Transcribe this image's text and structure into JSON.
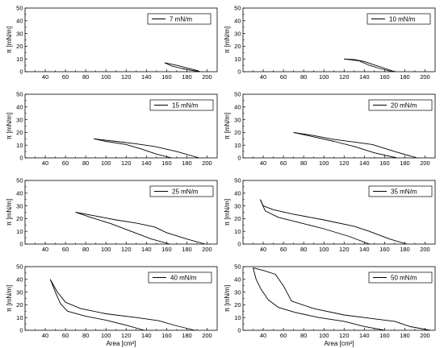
{
  "chart_data": [
    {
      "type": "line",
      "legend": "7 mN/m",
      "xlim": [
        20,
        210
      ],
      "ylim": [
        0,
        50
      ],
      "xticks": [
        40,
        60,
        80,
        100,
        120,
        140,
        160,
        180,
        200
      ],
      "yticks": [
        0,
        10,
        20,
        30,
        40,
        50
      ],
      "xlabel": "",
      "ylabel": "π [mN/m]",
      "series": [
        {
          "x": [
            158,
            170,
            180,
            190,
            193
          ],
          "y": [
            7,
            5,
            3,
            1,
            0
          ]
        },
        {
          "x": [
            193,
            185,
            175,
            165,
            158
          ],
          "y": [
            0,
            1,
            2.5,
            4.5,
            7
          ]
        }
      ]
    },
    {
      "type": "line",
      "legend": "10 mN/m",
      "xlim": [
        20,
        210
      ],
      "ylim": [
        0,
        50
      ],
      "xticks": [
        40,
        60,
        80,
        100,
        120,
        140,
        160,
        180,
        200
      ],
      "yticks": [
        0,
        10,
        20,
        30,
        40,
        50
      ],
      "xlabel": "",
      "ylabel": "π [mN/m]",
      "series": [
        {
          "x": [
            120,
            130,
            140,
            155,
            170
          ],
          "y": [
            10,
            9.5,
            8,
            4,
            0
          ]
        },
        {
          "x": [
            168,
            155,
            145,
            135,
            120
          ],
          "y": [
            0,
            2.5,
            5,
            8.5,
            10
          ]
        }
      ]
    },
    {
      "type": "line",
      "legend": "15 mN/m",
      "xlim": [
        20,
        210
      ],
      "ylim": [
        0,
        50
      ],
      "xticks": [
        40,
        60,
        80,
        100,
        120,
        140,
        160,
        180,
        200
      ],
      "yticks": [
        0,
        10,
        20,
        30,
        40,
        50
      ],
      "xlabel": "",
      "ylabel": "π [mN/m]",
      "series": [
        {
          "x": [
            88,
            110,
            130,
            148,
            170,
            192
          ],
          "y": [
            15,
            13,
            11,
            9,
            5,
            0
          ]
        },
        {
          "x": [
            165,
            150,
            135,
            120,
            100,
            88
          ],
          "y": [
            0,
            3,
            7,
            10.5,
            13,
            15
          ]
        }
      ]
    },
    {
      "type": "line",
      "legend": "20 mN/m",
      "xlim": [
        20,
        210
      ],
      "ylim": [
        0,
        50
      ],
      "xticks": [
        40,
        60,
        80,
        100,
        120,
        140,
        160,
        180,
        200
      ],
      "yticks": [
        0,
        10,
        20,
        30,
        40,
        50
      ],
      "xlabel": "",
      "ylabel": "π [mN/m]",
      "series": [
        {
          "x": [
            70,
            90,
            110,
            130,
            148,
            170,
            192
          ],
          "y": [
            20,
            17.5,
            14.5,
            12.5,
            10.5,
            5,
            0
          ]
        },
        {
          "x": [
            172,
            150,
            130,
            110,
            90,
            70
          ],
          "y": [
            0,
            4,
            9,
            13,
            16.5,
            20
          ]
        }
      ]
    },
    {
      "type": "line",
      "legend": "25 mN/m",
      "xlim": [
        20,
        210
      ],
      "ylim": [
        0,
        50
      ],
      "xticks": [
        40,
        60,
        80,
        100,
        120,
        140,
        160,
        180,
        200
      ],
      "yticks": [
        0,
        10,
        20,
        30,
        40,
        50
      ],
      "xlabel": "",
      "ylabel": "π [mN/m]",
      "series": [
        {
          "x": [
            70,
            90,
            110,
            130,
            148,
            160,
            180,
            198
          ],
          "y": [
            25,
            22,
            19,
            16.5,
            13.5,
            9,
            4,
            0
          ]
        },
        {
          "x": [
            163,
            145,
            125,
            105,
            85,
            70
          ],
          "y": [
            0,
            4,
            10,
            16,
            21,
            25
          ]
        }
      ]
    },
    {
      "type": "line",
      "legend": "35 mN/m",
      "xlim": [
        20,
        210
      ],
      "ylim": [
        0,
        50
      ],
      "xticks": [
        40,
        60,
        80,
        100,
        120,
        140,
        160,
        180,
        200
      ],
      "yticks": [
        0,
        10,
        20,
        30,
        40,
        50
      ],
      "xlabel": "",
      "ylabel": "π [mN/m]",
      "series": [
        {
          "x": [
            37,
            40,
            50,
            70,
            100,
            130,
            145,
            165,
            182
          ],
          "y": [
            35,
            30,
            27,
            23.5,
            19,
            14,
            10,
            4,
            0
          ]
        },
        {
          "x": [
            145,
            125,
            100,
            75,
            55,
            42,
            37
          ],
          "y": [
            0,
            6,
            12,
            17,
            21,
            26,
            35
          ]
        }
      ]
    },
    {
      "type": "line",
      "legend": "40 mN/m",
      "xlim": [
        20,
        210
      ],
      "ylim": [
        0,
        50
      ],
      "xticks": [
        40,
        60,
        80,
        100,
        120,
        140,
        160,
        180,
        200
      ],
      "yticks": [
        0,
        10,
        20,
        30,
        40,
        50
      ],
      "xlabel": "Area [cm²]",
      "ylabel": "π [mN/m]",
      "series": [
        {
          "x": [
            45,
            52,
            60,
            75,
            100,
            130,
            152,
            170,
            188
          ],
          "y": [
            40,
            30,
            22,
            17,
            13,
            10,
            7.5,
            3.5,
            0
          ]
        },
        {
          "x": [
            138,
            120,
            100,
            80,
            62,
            55,
            50,
            45
          ],
          "y": [
            0,
            4,
            8,
            11,
            15,
            21,
            30,
            40
          ]
        }
      ]
    },
    {
      "type": "line",
      "legend": "50 mN/m",
      "xlim": [
        20,
        210
      ],
      "ylim": [
        0,
        50
      ],
      "xticks": [
        40,
        60,
        80,
        100,
        120,
        140,
        160,
        180,
        200
      ],
      "yticks": [
        0,
        10,
        20,
        30,
        40,
        50
      ],
      "xlabel": "Area [cm²]",
      "ylabel": "π [mN/m]",
      "series": [
        {
          "x": [
            30,
            40,
            52,
            60,
            68,
            90,
            120,
            150,
            170,
            185,
            205
          ],
          "y": [
            49,
            47,
            44,
            35,
            23,
            17,
            12,
            9,
            7,
            3,
            0
          ]
        },
        {
          "x": [
            160,
            140,
            120,
            95,
            72,
            55,
            45,
            38,
            33,
            30
          ],
          "y": [
            0,
            3,
            7,
            10,
            14,
            18,
            24,
            32,
            40,
            49
          ]
        }
      ]
    }
  ]
}
